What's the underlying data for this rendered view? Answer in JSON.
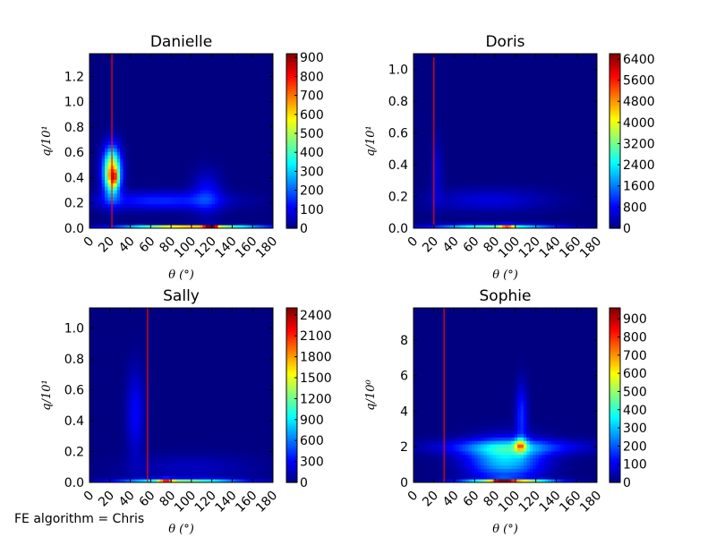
{
  "figure_note": "FE algorithm = Chris",
  "chart_data": [
    {
      "type": "heatmap",
      "title": "Danielle",
      "xlabel": "θ (°)",
      "ylabel": "q/10¹",
      "xlim": [
        0,
        180
      ],
      "xticks": [
        0,
        20,
        40,
        60,
        80,
        100,
        120,
        140,
        160,
        180
      ],
      "ylim": [
        0,
        1.38
      ],
      "yticks": [
        "0.0",
        "0.2",
        "0.4",
        "0.6",
        "0.8",
        "1.0",
        "1.2"
      ],
      "ytick_values": [
        0.0,
        0.2,
        0.4,
        0.6,
        0.8,
        1.0,
        1.2
      ],
      "colorbar_ticks": [
        0,
        100,
        200,
        300,
        400,
        500,
        600,
        700,
        800,
        900
      ],
      "colorbar_max": 920,
      "colormap": "jet",
      "vline_x": 22,
      "vline_color": "#ff0000",
      "density_features": [
        {
          "x": 22,
          "y": 0.45,
          "sx": 6,
          "sy": 0.13,
          "value": 640
        },
        {
          "x": 24,
          "y": 0.4,
          "sx": 3,
          "sy": 0.05,
          "value": 300
        },
        {
          "x": 70,
          "y": 0.22,
          "sx": 45,
          "sy": 0.05,
          "value": 150
        },
        {
          "x": 115,
          "y": 0.28,
          "sx": 10,
          "sy": 0.12,
          "value": 110
        },
        {
          "x": 100,
          "y": 0.01,
          "sx": 45,
          "sy": 0.012,
          "value": 650
        },
        {
          "x": 119,
          "y": 0.01,
          "sx": 4,
          "sy": 0.012,
          "value": 700
        }
      ]
    },
    {
      "type": "heatmap",
      "title": "Doris",
      "xlabel": "θ (°)",
      "ylabel": "q/10¹",
      "xlim": [
        0,
        180
      ],
      "xticks": [
        0,
        20,
        40,
        60,
        80,
        100,
        120,
        140,
        160,
        180
      ],
      "ylim": [
        0,
        1.1
      ],
      "yticks": [
        "0.0",
        "0.2",
        "0.4",
        "0.6",
        "0.8",
        "1.0"
      ],
      "ytick_values": [
        0.0,
        0.2,
        0.4,
        0.6,
        0.8,
        1.0
      ],
      "colorbar_ticks": [
        0,
        800,
        1600,
        2400,
        3200,
        4000,
        4800,
        5600,
        6400
      ],
      "colorbar_max": 6600,
      "colormap": "jet",
      "vline_x": 20,
      "vline_color": "#ff0000",
      "density_features": [
        {
          "x": 23,
          "y": 0.35,
          "sx": 4,
          "sy": 0.15,
          "value": 500
        },
        {
          "x": 75,
          "y": 0.18,
          "sx": 40,
          "sy": 0.05,
          "value": 600
        },
        {
          "x": 80,
          "y": 0.01,
          "sx": 40,
          "sy": 0.012,
          "value": 3000
        },
        {
          "x": 92,
          "y": 0.01,
          "sx": 5,
          "sy": 0.012,
          "value": 2400
        }
      ]
    },
    {
      "type": "heatmap",
      "title": "Sally",
      "xlabel": "θ (°)",
      "ylabel": "q/10¹",
      "xlim": [
        0,
        180
      ],
      "xticks": [
        0,
        20,
        40,
        60,
        80,
        100,
        120,
        140,
        160,
        180
      ],
      "ylim": [
        0,
        1.13
      ],
      "yticks": [
        "0.0",
        "0.2",
        "0.4",
        "0.6",
        "0.8",
        "1.0"
      ],
      "ytick_values": [
        0.0,
        0.2,
        0.4,
        0.6,
        0.8,
        1.0
      ],
      "colorbar_ticks": [
        0,
        300,
        600,
        900,
        1200,
        1500,
        1800,
        2100,
        2400
      ],
      "colorbar_max": 2500,
      "colormap": "jet",
      "vline_x": 57,
      "vline_color": "#ff0000",
      "density_features": [
        {
          "x": 45,
          "y": 0.45,
          "sx": 6,
          "sy": 0.2,
          "value": 300
        },
        {
          "x": 100,
          "y": 0.1,
          "sx": 45,
          "sy": 0.06,
          "value": 150
        },
        {
          "x": 90,
          "y": 0.01,
          "sx": 40,
          "sy": 0.012,
          "value": 1200
        },
        {
          "x": 75,
          "y": 0.01,
          "sx": 5,
          "sy": 0.012,
          "value": 1000
        }
      ]
    },
    {
      "type": "heatmap",
      "title": "Sophie",
      "xlabel": "θ (°)",
      "ylabel": "q/10⁰",
      "xlim": [
        0,
        180
      ],
      "xticks": [
        0,
        20,
        40,
        60,
        80,
        100,
        120,
        140,
        160,
        180
      ],
      "ylim": [
        0,
        9.8
      ],
      "yticks": [
        "0",
        "2",
        "4",
        "6",
        "8"
      ],
      "ytick_values": [
        0,
        2,
        4,
        6,
        8
      ],
      "colorbar_ticks": [
        0,
        100,
        200,
        300,
        400,
        500,
        600,
        700,
        800,
        900
      ],
      "colorbar_max": 960,
      "colormap": "jet",
      "vline_x": 30,
      "vline_color": "#ff0000",
      "density_features": [
        {
          "x": 95,
          "y": 2.0,
          "sx": 50,
          "sy": 0.3,
          "value": 200
        },
        {
          "x": 90,
          "y": 1.3,
          "sx": 25,
          "sy": 0.8,
          "value": 320
        },
        {
          "x": 105,
          "y": 2.1,
          "sx": 4,
          "sy": 0.25,
          "value": 380
        },
        {
          "x": 106,
          "y": 3.8,
          "sx": 4,
          "sy": 1.2,
          "value": 160
        },
        {
          "x": 95,
          "y": 0.05,
          "sx": 30,
          "sy": 0.1,
          "value": 650
        },
        {
          "x": 88,
          "y": 0.05,
          "sx": 6,
          "sy": 0.1,
          "value": 500
        }
      ]
    }
  ]
}
